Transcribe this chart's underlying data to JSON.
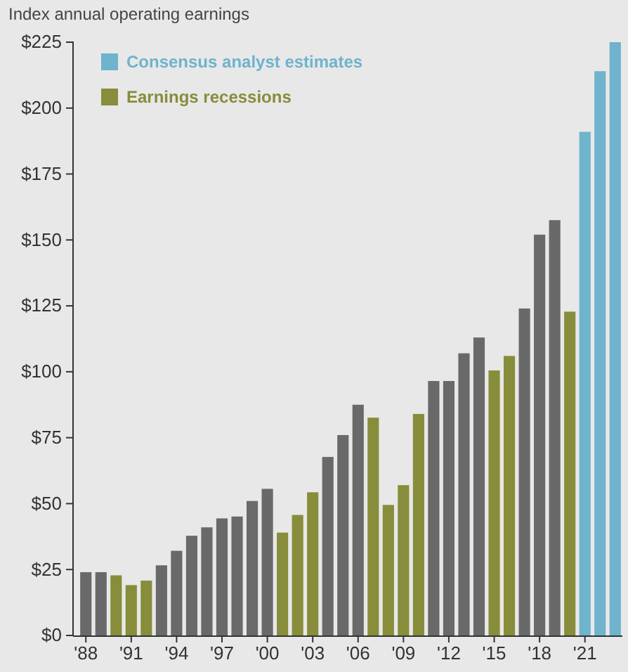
{
  "chart_data": {
    "type": "bar",
    "title": "Index annual operating earnings",
    "categories": [
      "'88",
      null,
      null,
      "'91",
      null,
      null,
      "'94",
      null,
      null,
      "'97",
      null,
      null,
      "'00",
      null,
      null,
      "'03",
      null,
      null,
      "'06",
      null,
      null,
      "'09",
      null,
      null,
      "'12",
      null,
      null,
      "'15",
      null,
      null,
      "'18",
      null,
      null,
      "'21",
      null,
      null
    ],
    "series": [
      {
        "color": "#696969",
        "values": [
          24,
          24,
          null,
          null,
          null,
          26.6,
          32.1,
          37.8,
          41,
          44.4,
          45.1,
          51,
          55.6,
          null,
          null,
          null,
          67.7,
          76,
          87.5,
          null,
          null,
          null,
          null,
          96.5,
          96.5,
          107,
          113,
          null,
          null,
          124,
          152,
          157.5,
          null,
          null,
          null,
          null
        ]
      },
      {
        "name": "Earnings recessions",
        "color": "#878d3a",
        "values": [
          null,
          null,
          22.8,
          19.1,
          20.8,
          null,
          null,
          null,
          null,
          null,
          null,
          null,
          null,
          39,
          45.7,
          54.3,
          null,
          null,
          null,
          82.6,
          49.5,
          57,
          84,
          null,
          null,
          null,
          null,
          100.5,
          106,
          null,
          null,
          null,
          122.8,
          null,
          null,
          null
        ]
      },
      {
        "name": "Consensus analyst estimates",
        "color": "#6fb3cc",
        "values": [
          null,
          null,
          null,
          null,
          null,
          null,
          null,
          null,
          null,
          null,
          null,
          null,
          null,
          null,
          null,
          null,
          null,
          null,
          null,
          null,
          null,
          null,
          null,
          null,
          null,
          null,
          null,
          null,
          null,
          null,
          null,
          null,
          null,
          191,
          214,
          225
        ]
      }
    ],
    "ylim": [
      0,
      225
    ],
    "yticks": [
      {
        "value": 0,
        "label": "$0"
      },
      {
        "value": 25,
        "label": "$25"
      },
      {
        "value": 50,
        "label": "$50"
      },
      {
        "value": 75,
        "label": "$75"
      },
      {
        "value": 100,
        "label": "$100"
      },
      {
        "value": 125,
        "label": "$125"
      },
      {
        "value": 150,
        "label": "$150"
      },
      {
        "value": 175,
        "label": "$175"
      },
      {
        "value": 200,
        "label": "$200"
      },
      {
        "value": 225,
        "label": "$225"
      }
    ],
    "grid": false,
    "legend": "top left"
  }
}
